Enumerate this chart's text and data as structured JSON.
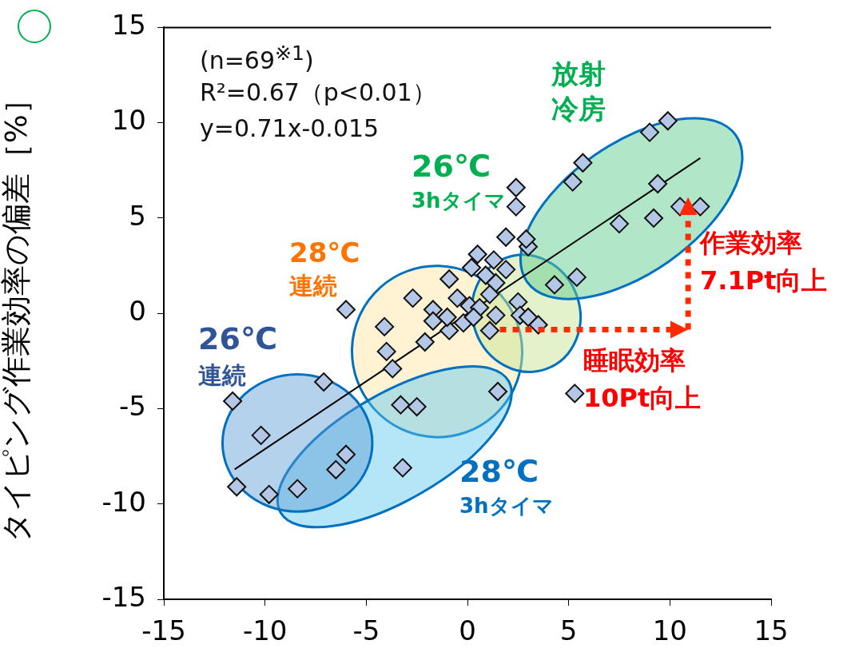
{
  "chart_data": {
    "type": "scatter",
    "ylabel": "タイピング作業効率の偏差［%］",
    "xlim": [
      -15,
      15
    ],
    "xticks": [
      -15,
      -10,
      -5,
      0,
      5,
      10,
      15
    ],
    "ylim": [
      -15,
      15
    ],
    "yticks": [
      -15,
      -10,
      -5,
      0,
      5,
      10,
      15
    ],
    "grid": false,
    "legend": false,
    "marker": "diamond",
    "annotations": [
      "(n=69$^{※1}$)",
      "R²=0.67（p<0.01）",
      "y=0.71x-0.015",
      "放射",
      "冷房",
      "26℃",
      "3hタイマ",
      "28℃",
      "連続",
      "26℃",
      "連続",
      "28℃",
      "3hタイマ",
      "作業効率",
      "7.1Pt向上",
      "睡眠効率",
      "10Pt向上"
    ],
    "series": [
      {
        "color": "#b4c7e7",
        "x": [
          -11.6,
          -7.1,
          -10.2,
          -6.0,
          -6.5,
          -11.4,
          -9.8,
          -8.4,
          -3.2,
          -6.0,
          0.5,
          0.2,
          1.9,
          1.3,
          1.9,
          -0.9,
          -2.7,
          -1.7,
          -0.5,
          -1.7,
          -4.1,
          -0.9,
          -0.2,
          0.1,
          -2.1,
          -4.0,
          -3.7,
          -3.3,
          -2.5,
          1.5,
          1.4,
          1.1,
          0.6,
          1.4,
          1.1,
          2.5,
          2.6,
          3.0,
          3.5,
          3.0,
          4.3,
          0.9,
          2.4,
          2.4,
          2.9,
          5.2,
          5.4,
          9.0,
          9.9,
          5.7,
          9.4,
          7.5,
          9.2,
          10.5,
          11.5,
          5.3,
          -1.0,
          0.3
        ],
        "values": [
          -4.6,
          -3.6,
          -6.4,
          -7.4,
          -8.2,
          -9.1,
          -9.5,
          -9.2,
          -8.1,
          0.2,
          3.1,
          2.4,
          4.0,
          2.8,
          2.3,
          1.8,
          0.8,
          0.2,
          0.8,
          -0.4,
          -0.7,
          -0.9,
          -0.5,
          0.4,
          -1.5,
          -2.0,
          -2.9,
          -4.8,
          -4.9,
          -4.1,
          1.6,
          1.0,
          0.3,
          -0.1,
          -0.9,
          0.6,
          -0.1,
          -0.2,
          -0.6,
          3.5,
          1.5,
          2.0,
          6.6,
          5.6,
          3.9,
          6.9,
          1.9,
          9.5,
          10.1,
          7.9,
          6.8,
          4.7,
          5.0,
          5.6,
          5.6,
          -4.2,
          -0.2,
          -0.2
        ]
      },
      {
        "type": "line",
        "color": "#000000",
        "marker": "none",
        "x": [
          -11.5,
          11.5
        ],
        "values": [
          -8.18,
          8.15
        ]
      }
    ]
  }
}
